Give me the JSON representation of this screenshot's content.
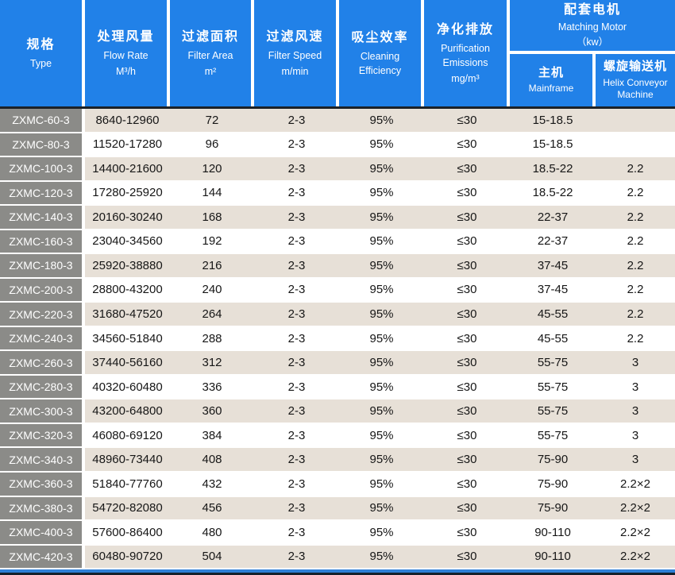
{
  "table": {
    "columns": [
      {
        "zh": "规格",
        "en": "Type",
        "unit": ""
      },
      {
        "zh": "处理风量",
        "en": "Flow Rate",
        "unit": "M³/h"
      },
      {
        "zh": "过滤面积",
        "en": "Filter Area",
        "unit": "m²"
      },
      {
        "zh": "过滤风速",
        "en": "Filter Speed",
        "unit": "m/min"
      },
      {
        "zh": "吸尘效率",
        "en": "Cleaning Efficiency",
        "unit": ""
      },
      {
        "zh": "净化排放",
        "en": "Purification Emissions",
        "unit": "mg/m³"
      }
    ],
    "motor_group": {
      "zh": "配套电机",
      "en": "Matching Motor",
      "unit": "（kw）",
      "sub": [
        {
          "zh": "主机",
          "en": "Mainframe"
        },
        {
          "zh": "螺旋输送机",
          "en": "Helix Conveyor Machine"
        }
      ]
    },
    "rows": [
      {
        "type": "ZXMC-60-3",
        "flow": "8640-12960",
        "area": "72",
        "speed": "2-3",
        "eff": "95%",
        "emis": "≤30",
        "mainframe": "15-18.5",
        "helix": ""
      },
      {
        "type": "ZXMC-80-3",
        "flow": "11520-17280",
        "area": "96",
        "speed": "2-3",
        "eff": "95%",
        "emis": "≤30",
        "mainframe": "15-18.5",
        "helix": ""
      },
      {
        "type": "ZXMC-100-3",
        "flow": "14400-21600",
        "area": "120",
        "speed": "2-3",
        "eff": "95%",
        "emis": "≤30",
        "mainframe": "18.5-22",
        "helix": "2.2"
      },
      {
        "type": "ZXMC-120-3",
        "flow": "17280-25920",
        "area": "144",
        "speed": "2-3",
        "eff": "95%",
        "emis": "≤30",
        "mainframe": "18.5-22",
        "helix": "2.2"
      },
      {
        "type": "ZXMC-140-3",
        "flow": "20160-30240",
        "area": "168",
        "speed": "2-3",
        "eff": "95%",
        "emis": "≤30",
        "mainframe": "22-37",
        "helix": "2.2"
      },
      {
        "type": "ZXMC-160-3",
        "flow": "23040-34560",
        "area": "192",
        "speed": "2-3",
        "eff": "95%",
        "emis": "≤30",
        "mainframe": "22-37",
        "helix": "2.2"
      },
      {
        "type": "ZXMC-180-3",
        "flow": "25920-38880",
        "area": "216",
        "speed": "2-3",
        "eff": "95%",
        "emis": "≤30",
        "mainframe": "37-45",
        "helix": "2.2"
      },
      {
        "type": "ZXMC-200-3",
        "flow": "28800-43200",
        "area": "240",
        "speed": "2-3",
        "eff": "95%",
        "emis": "≤30",
        "mainframe": "37-45",
        "helix": "2.2"
      },
      {
        "type": "ZXMC-220-3",
        "flow": "31680-47520",
        "area": "264",
        "speed": "2-3",
        "eff": "95%",
        "emis": "≤30",
        "mainframe": "45-55",
        "helix": "2.2"
      },
      {
        "type": "ZXMC-240-3",
        "flow": "34560-51840",
        "area": "288",
        "speed": "2-3",
        "eff": "95%",
        "emis": "≤30",
        "mainframe": "45-55",
        "helix": "2.2"
      },
      {
        "type": "ZXMC-260-3",
        "flow": "37440-56160",
        "area": "312",
        "speed": "2-3",
        "eff": "95%",
        "emis": "≤30",
        "mainframe": "55-75",
        "helix": "3"
      },
      {
        "type": "ZXMC-280-3",
        "flow": "40320-60480",
        "area": "336",
        "speed": "2-3",
        "eff": "95%",
        "emis": "≤30",
        "mainframe": "55-75",
        "helix": "3"
      },
      {
        "type": "ZXMC-300-3",
        "flow": "43200-64800",
        "area": "360",
        "speed": "2-3",
        "eff": "95%",
        "emis": "≤30",
        "mainframe": "55-75",
        "helix": "3"
      },
      {
        "type": "ZXMC-320-3",
        "flow": "46080-69120",
        "area": "384",
        "speed": "2-3",
        "eff": "95%",
        "emis": "≤30",
        "mainframe": "55-75",
        "helix": "3"
      },
      {
        "type": "ZXMC-340-3",
        "flow": "48960-73440",
        "area": "408",
        "speed": "2-3",
        "eff": "95%",
        "emis": "≤30",
        "mainframe": "75-90",
        "helix": "3"
      },
      {
        "type": "ZXMC-360-3",
        "flow": "51840-77760",
        "area": "432",
        "speed": "2-3",
        "eff": "95%",
        "emis": "≤30",
        "mainframe": "75-90",
        "helix": "2.2×2"
      },
      {
        "type": "ZXMC-380-3",
        "flow": "54720-82080",
        "area": "456",
        "speed": "2-3",
        "eff": "95%",
        "emis": "≤30",
        "mainframe": "75-90",
        "helix": "2.2×2"
      },
      {
        "type": "ZXMC-400-3",
        "flow": "57600-86400",
        "area": "480",
        "speed": "2-3",
        "eff": "95%",
        "emis": "≤30",
        "mainframe": "90-110",
        "helix": "2.2×2"
      },
      {
        "type": "ZXMC-420-3",
        "flow": "60480-90720",
        "area": "504",
        "speed": "2-3",
        "eff": "95%",
        "emis": "≤30",
        "mainframe": "90-110",
        "helix": "2.2×2"
      }
    ]
  },
  "colors": {
    "header_blue": "#2181e8",
    "row_label_gray": "#8b8b88",
    "row_alt_beige": "#e7e0d7",
    "row_white": "#ffffff",
    "header_underline_dark": "#1c2126",
    "bottom_bar_blue": "#2e7fd6",
    "bottom_edge_dark": "#15202b",
    "body_text": "#161616"
  }
}
